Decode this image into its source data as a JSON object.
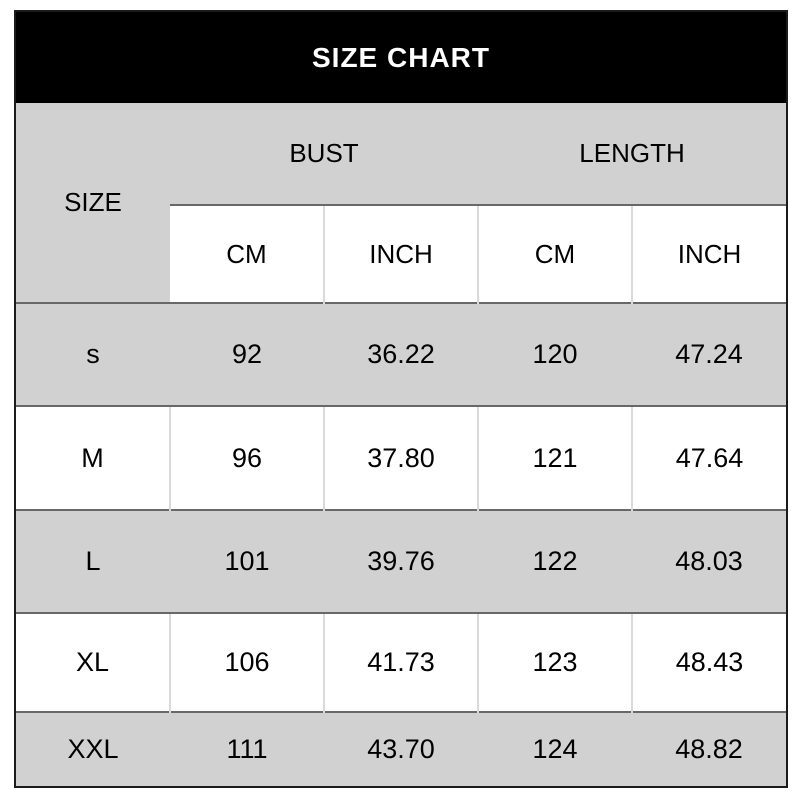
{
  "title": "SIZE CHART",
  "colors": {
    "title_bar_bg": "#000000",
    "title_text": "#ffffff",
    "header_bg": "#d1d1d1",
    "row_gray_bg": "#d1d1d1",
    "row_white_bg": "#ffffff",
    "rule_dark": "#686868",
    "rule_light": "#d9d9d9",
    "outer_border": "#1b1b1b",
    "text": "#000000"
  },
  "table": {
    "corner_header": "SIZE",
    "group_headers": [
      {
        "label": "BUST"
      },
      {
        "label": "LENGTH"
      }
    ],
    "sub_headers": [
      "CM",
      "INCH",
      "CM",
      "INCH"
    ],
    "rows": [
      {
        "size": "s",
        "bust_cm": "92",
        "bust_inch": "36.22",
        "length_cm": "120",
        "length_inch": "47.24"
      },
      {
        "size": "M",
        "bust_cm": "96",
        "bust_inch": "37.80",
        "length_cm": "121",
        "length_inch": "47.64"
      },
      {
        "size": "L",
        "bust_cm": "101",
        "bust_inch": "39.76",
        "length_cm": "122",
        "length_inch": "48.03"
      },
      {
        "size": "XL",
        "bust_cm": "106",
        "bust_inch": "41.73",
        "length_cm": "123",
        "length_inch": "48.43"
      },
      {
        "size": "XXL",
        "bust_cm": "111",
        "bust_inch": "43.70",
        "length_cm": "124",
        "length_inch": "48.82"
      }
    ]
  },
  "chart_data": {
    "type": "table",
    "title": "SIZE CHART",
    "columns": [
      "SIZE",
      "BUST CM",
      "BUST INCH",
      "LENGTH CM",
      "LENGTH INCH"
    ],
    "rows": [
      [
        "s",
        92,
        36.22,
        120,
        47.24
      ],
      [
        "M",
        96,
        37.8,
        121,
        47.64
      ],
      [
        "L",
        101,
        39.76,
        122,
        48.03
      ],
      [
        "XL",
        106,
        41.73,
        123,
        48.43
      ],
      [
        "XXL",
        111,
        43.7,
        124,
        48.82
      ]
    ]
  }
}
